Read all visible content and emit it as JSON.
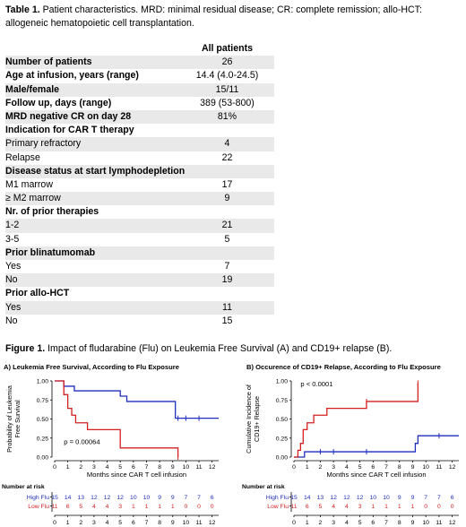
{
  "table": {
    "caption_label": "Table 1.",
    "caption_text": " Patient characteristics. MRD: minimal residual disease; CR: complete remission; allo-HCT: allogeneic hematopoietic cell transplantation.",
    "column_header": "All patients",
    "rows": [
      {
        "label": "Number of patients",
        "value": "26",
        "bold": true,
        "shade": true
      },
      {
        "label": "Age at infusion, years (range)",
        "value": "14.4 (4.0-24.5)",
        "bold": true,
        "shade": false
      },
      {
        "label": "Male/female",
        "value": "15/11",
        "bold": true,
        "shade": true
      },
      {
        "label": "Follow up, days (range)",
        "value": "389 (53-800)",
        "bold": true,
        "shade": false
      },
      {
        "label": "MRD negative CR on day 28",
        "value": "81%",
        "bold": true,
        "shade": true
      },
      {
        "label": "Indication for CAR T therapy",
        "value": "",
        "bold": true,
        "shade": false
      },
      {
        "label": "Primary refractory",
        "value": "4",
        "bold": false,
        "shade": true
      },
      {
        "label": "Relapse",
        "value": "22",
        "bold": false,
        "shade": false
      },
      {
        "label": "Disease status at start lymphodepletion",
        "value": "",
        "bold": true,
        "shade": true
      },
      {
        "label": "M1 marrow",
        "value": "17",
        "bold": false,
        "shade": false
      },
      {
        "label": "≥ M2 marrow",
        "value": "9",
        "bold": false,
        "shade": true
      },
      {
        "label": "Nr. of prior therapies",
        "value": "",
        "bold": true,
        "shade": false
      },
      {
        "label": "1-2",
        "value": "21",
        "bold": false,
        "shade": true
      },
      {
        "label": "3-5",
        "value": "5",
        "bold": false,
        "shade": false
      },
      {
        "label": "Prior blinatumomab",
        "value": "",
        "bold": true,
        "shade": true
      },
      {
        "label": "Yes",
        "value": "7",
        "bold": false,
        "shade": false
      },
      {
        "label": "No",
        "value": "19",
        "bold": false,
        "shade": true
      },
      {
        "label": "Prior allo-HCT",
        "value": "",
        "bold": true,
        "shade": false
      },
      {
        "label": "Yes",
        "value": "11",
        "bold": false,
        "shade": true
      },
      {
        "label": "No",
        "value": "15",
        "bold": false,
        "shade": false
      }
    ]
  },
  "figure": {
    "caption_label": "Figure 1.",
    "caption_text": " Impact of fludarabine (Flu) on Leukemia Free Survival (A) and CD19+ relapse (B)."
  },
  "colors": {
    "high_flu": "#1f2fbf",
    "low_flu": "#d42020",
    "shade": "#e9e9e9"
  },
  "chart_data": [
    {
      "type": "line",
      "title": "A) Leukemia Free Survival, According to Flu Exposure",
      "xlabel": "Months since CAR T cell infusion",
      "ylabel": "Probability of Leukemia Free Survival",
      "xlim": [
        0,
        12.5
      ],
      "ylim": [
        0,
        1
      ],
      "xticks": [
        "0",
        "1",
        "2",
        "3",
        "4",
        "5",
        "6",
        "7",
        "8",
        "9",
        "10",
        "11",
        "12"
      ],
      "yticks": [
        "0.00",
        "0.25",
        "0.50",
        "0.75",
        "1.00"
      ],
      "annotation": "p = 0.00064",
      "series": [
        {
          "name": "High Flu",
          "color": "#1f2fbf",
          "x": [
            0,
            0.7,
            1.0,
            1.5,
            2.3,
            5.0,
            5.5,
            6.0,
            9.2,
            12.5
          ],
          "y": [
            1.0,
            0.93,
            0.93,
            0.87,
            0.87,
            0.8,
            0.73,
            0.73,
            0.51,
            0.51
          ],
          "censor_x": [
            9.4,
            10.0,
            11.0
          ]
        },
        {
          "name": "Low Flu",
          "color": "#d42020",
          "x": [
            0,
            0.7,
            1.0,
            1.3,
            1.6,
            2.5,
            5.0,
            9.0,
            9.4
          ],
          "y": [
            1.0,
            0.82,
            0.64,
            0.55,
            0.45,
            0.36,
            0.12,
            0.12,
            0.0
          ],
          "censor_x": [
            9.4
          ]
        }
      ],
      "risk_table": {
        "label": "Number at risk",
        "rows": [
          {
            "name": "High Flu",
            "values": [
              15,
              14,
              13,
              12,
              12,
              12,
              10,
              10,
              9,
              9,
              7,
              7,
              6
            ]
          },
          {
            "name": "Low Flu",
            "values": [
              11,
              6,
              5,
              4,
              4,
              3,
              1,
              1,
              1,
              1,
              0,
              0,
              0
            ]
          }
        ]
      }
    },
    {
      "type": "line",
      "title": "B) Occurence of CD19+ Relapse, According to Flu Exposure",
      "xlabel": "Months since CAR T cell infusion",
      "ylabel": "Cumulative Incidence of CD19+ Relapse",
      "xlim": [
        0,
        12.5
      ],
      "ylim": [
        0,
        1
      ],
      "xticks": [
        "0",
        "1",
        "2",
        "3",
        "4",
        "5",
        "6",
        "7",
        "8",
        "9",
        "10",
        "11",
        "12"
      ],
      "yticks": [
        "0.00",
        "0.25",
        "0.50",
        "0.75",
        "1.00"
      ],
      "annotation": "p < 0.0001",
      "series": [
        {
          "name": "High Flu",
          "color": "#1f2fbf",
          "x": [
            0,
            0.8,
            9.0,
            9.2,
            9.4,
            12.5
          ],
          "y": [
            0.0,
            0.07,
            0.07,
            0.18,
            0.28,
            0.28
          ],
          "censor_x": [
            2.0,
            3.0,
            5.5,
            11.0
          ]
        },
        {
          "name": "Low Flu",
          "color": "#d42020",
          "x": [
            0,
            0.3,
            0.5,
            0.7,
            1.0,
            1.5,
            2.5,
            5.5,
            9.4
          ],
          "y": [
            0.0,
            0.09,
            0.18,
            0.36,
            0.45,
            0.55,
            0.64,
            0.73,
            0.97
          ],
          "censor_x": [
            5.5,
            9.4
          ]
        }
      ],
      "risk_table": {
        "label": "Number at risk",
        "rows": [
          {
            "name": "High Flu",
            "values": [
              15,
              14,
              13,
              12,
              12,
              12,
              10,
              10,
              9,
              9,
              7,
              7,
              6
            ]
          },
          {
            "name": "Low Flu",
            "values": [
              11,
              6,
              5,
              4,
              4,
              3,
              1,
              1,
              1,
              1,
              0,
              0,
              0
            ]
          }
        ]
      }
    }
  ]
}
